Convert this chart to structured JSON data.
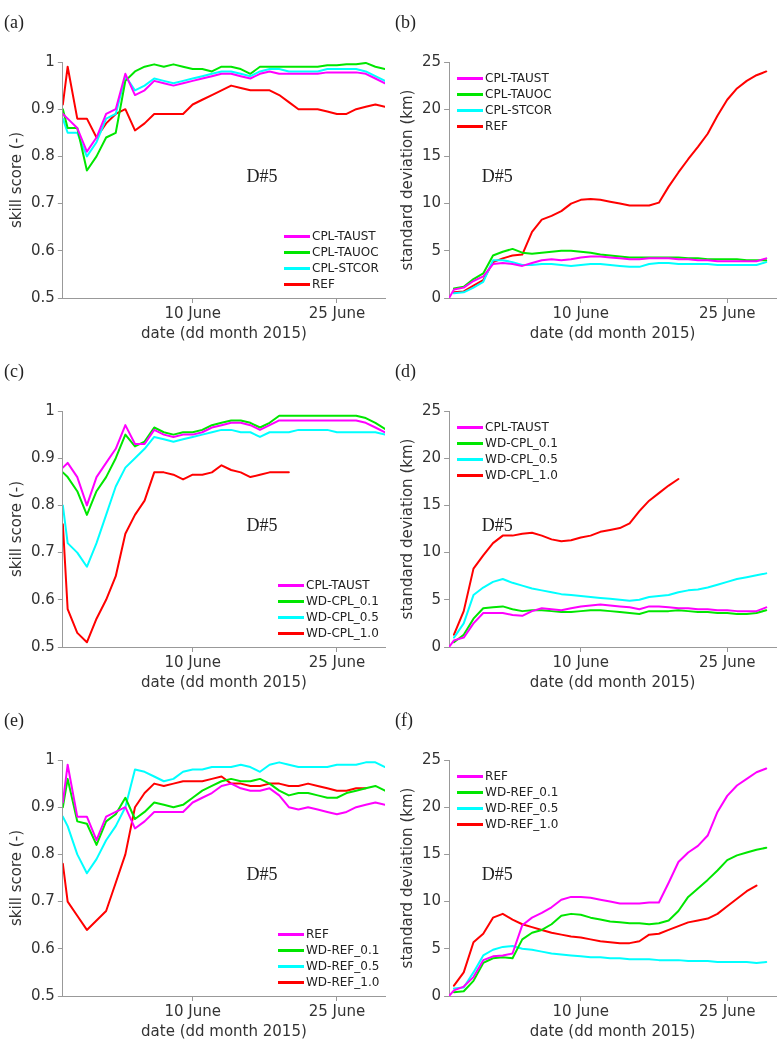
{
  "chart_data": [
    {
      "type": "line",
      "xlabel": "date (dd month 2015)",
      "ylabel": "skill score (-)",
      "annotations": [
        "(a)",
        "D#5"
      ],
      "legend": "bottom right",
      "xlim": [
        "2015-05-27T12:00",
        "2015-06-30"
      ],
      "xticks": [
        {
          "value": "2015-06-10",
          "label": "10 June"
        },
        {
          "value": "2015-06-25",
          "label": "25 June"
        }
      ],
      "ylim": [
        0.5,
        1
      ],
      "yticks": [
        0.5,
        0.6,
        0.7,
        0.8,
        0.9,
        1
      ],
      "x": [
        "2015-05-27T12:00",
        "2015-05-28",
        "2015-05-29",
        "2015-05-30",
        "2015-05-31",
        "2015-06-01",
        "2015-06-02",
        "2015-06-03",
        "2015-06-04",
        "2015-06-05",
        "2015-06-06",
        "2015-06-07",
        "2015-06-08",
        "2015-06-09",
        "2015-06-10",
        "2015-06-11",
        "2015-06-12",
        "2015-06-13",
        "2015-06-14",
        "2015-06-15",
        "2015-06-16",
        "2015-06-17",
        "2015-06-18",
        "2015-06-19",
        "2015-06-20",
        "2015-06-21",
        "2015-06-22",
        "2015-06-23",
        "2015-06-24",
        "2015-06-25",
        "2015-06-26",
        "2015-06-27",
        "2015-06-28",
        "2015-06-29",
        "2015-06-30"
      ],
      "series": [
        {
          "name": "CPL-TAUST",
          "color": "#ff00ff",
          "values": [
            0.89,
            0.88,
            0.86,
            0.81,
            0.84,
            0.89,
            0.9,
            0.975,
            0.93,
            0.94,
            0.96,
            0.955,
            0.95,
            0.955,
            0.96,
            0.965,
            0.97,
            0.975,
            0.975,
            0.97,
            0.965,
            0.975,
            0.98,
            0.975,
            0.975,
            0.975,
            0.975,
            0.975,
            0.978,
            0.978,
            0.978,
            0.978,
            0.975,
            0.965,
            0.955
          ]
        },
        {
          "name": "CPL-TAUOC",
          "color": "#00e600",
          "values": [
            0.9,
            0.86,
            0.86,
            0.77,
            0.8,
            0.84,
            0.85,
            0.96,
            0.98,
            0.99,
            0.995,
            0.99,
            0.995,
            0.99,
            0.985,
            0.985,
            0.98,
            0.99,
            0.99,
            0.985,
            0.975,
            0.99,
            0.99,
            0.99,
            0.99,
            0.99,
            0.99,
            0.99,
            0.993,
            0.993,
            0.995,
            0.995,
            0.998,
            0.99,
            0.985
          ]
        },
        {
          "name": "CPL-STCOR",
          "color": "#00ffff",
          "values": [
            0.88,
            0.85,
            0.85,
            0.8,
            0.83,
            0.88,
            0.89,
            0.97,
            0.94,
            0.95,
            0.965,
            0.96,
            0.955,
            0.96,
            0.965,
            0.97,
            0.975,
            0.98,
            0.98,
            0.975,
            0.97,
            0.98,
            0.985,
            0.985,
            0.98,
            0.98,
            0.98,
            0.98,
            0.985,
            0.985,
            0.985,
            0.985,
            0.98,
            0.97,
            0.96
          ]
        },
        {
          "name": "REF",
          "color": "#ff0000",
          "values": [
            0.91,
            0.99,
            0.88,
            0.88,
            0.84,
            0.87,
            0.89,
            0.9,
            0.855,
            0.87,
            0.89,
            0.89,
            0.89,
            0.89,
            0.91,
            0.92,
            0.93,
            0.94,
            0.95,
            0.945,
            0.94,
            0.94,
            0.94,
            0.93,
            0.915,
            0.9,
            0.9,
            0.9,
            0.895,
            0.89,
            0.89,
            0.9,
            0.905,
            0.91,
            0.905
          ]
        }
      ]
    },
    {
      "type": "line",
      "xlabel": "date (dd month 2015)",
      "ylabel": "standard deviation (km)",
      "annotations": [
        "(b)",
        "D#5"
      ],
      "legend": "top left",
      "xlim": [
        "2015-05-27T12:00",
        "2015-06-30"
      ],
      "xticks": [
        {
          "value": "2015-06-10",
          "label": "10 June"
        },
        {
          "value": "2015-06-25",
          "label": "25 June"
        }
      ],
      "ylim": [
        0,
        25
      ],
      "yticks": [
        0,
        5,
        10,
        15,
        20,
        25
      ],
      "x": [
        "2015-05-27T12:00",
        "2015-05-28",
        "2015-05-29",
        "2015-05-30",
        "2015-05-31",
        "2015-06-01",
        "2015-06-02",
        "2015-06-03",
        "2015-06-04",
        "2015-06-05",
        "2015-06-06",
        "2015-06-07",
        "2015-06-08",
        "2015-06-09",
        "2015-06-10",
        "2015-06-11",
        "2015-06-12",
        "2015-06-13",
        "2015-06-14",
        "2015-06-15",
        "2015-06-16",
        "2015-06-17",
        "2015-06-18",
        "2015-06-19",
        "2015-06-20",
        "2015-06-21",
        "2015-06-22",
        "2015-06-23",
        "2015-06-24",
        "2015-06-25",
        "2015-06-26",
        "2015-06-27",
        "2015-06-28",
        "2015-06-29"
      ],
      "series": [
        {
          "name": "CPL-TAUST",
          "color": "#ff00ff",
          "values": [
            0,
            0.9,
            1.1,
            1.8,
            2.3,
            3.6,
            3.7,
            3.6,
            3.4,
            3.7,
            4,
            4.1,
            4,
            4.1,
            4.3,
            4.4,
            4.4,
            4.3,
            4.2,
            4.1,
            4.1,
            4.2,
            4.2,
            4.2,
            4.1,
            4.1,
            4,
            4,
            3.9,
            3.9,
            3.9,
            3.9,
            3.9,
            4.2
          ]
        },
        {
          "name": "CPL-TAUOC",
          "color": "#00e600",
          "values": [
            null,
            1,
            1.2,
            2,
            2.6,
            4.5,
            4.9,
            5.2,
            4.8,
            4.7,
            4.8,
            4.9,
            5,
            5,
            4.9,
            4.8,
            4.6,
            4.5,
            4.4,
            4.3,
            4.3,
            4.3,
            4.3,
            4.3,
            4.3,
            4.2,
            4.2,
            4.1,
            4.1,
            4.1,
            4.1,
            4,
            4,
            4
          ]
        },
        {
          "name": "CPL-STCOR",
          "color": "#00ffff",
          "values": [
            null,
            0.5,
            0.6,
            1.1,
            1.7,
            4,
            4,
            3.8,
            3.5,
            3.5,
            3.6,
            3.6,
            3.5,
            3.4,
            3.5,
            3.6,
            3.6,
            3.5,
            3.4,
            3.3,
            3.3,
            3.6,
            3.7,
            3.7,
            3.6,
            3.6,
            3.6,
            3.6,
            3.5,
            3.5,
            3.5,
            3.5,
            3.5,
            3.8
          ]
        },
        {
          "name": "REF",
          "color": "#ff0000",
          "values": [
            null,
            0.6,
            0.7,
            1.3,
            1.9,
            3.8,
            4.2,
            4.5,
            4.6,
            7,
            8.3,
            8.7,
            9.2,
            10,
            10.4,
            10.5,
            10.4,
            10.2,
            10,
            9.8,
            9.8,
            9.8,
            10.1,
            11.8,
            13.3,
            14.7,
            16,
            17.4,
            19.3,
            21,
            22.2,
            23,
            23.6,
            24
          ]
        }
      ]
    },
    {
      "type": "line",
      "xlabel": "date (dd month 2015)",
      "ylabel": "skill score (-)",
      "annotations": [
        "(c)",
        "D#5"
      ],
      "legend": "bottom right",
      "xlim": [
        "2015-05-27T12:00",
        "2015-06-30"
      ],
      "xticks": [
        {
          "value": "2015-06-10",
          "label": "10 June"
        },
        {
          "value": "2015-06-25",
          "label": "25 June"
        }
      ],
      "ylim": [
        0.5,
        1
      ],
      "yticks": [
        0.5,
        0.6,
        0.7,
        0.8,
        0.9,
        1
      ],
      "x": [
        "2015-05-27T12:00",
        "2015-05-28",
        "2015-05-29",
        "2015-05-30",
        "2015-05-31",
        "2015-06-01",
        "2015-06-02",
        "2015-06-03",
        "2015-06-04",
        "2015-06-05",
        "2015-06-06",
        "2015-06-07",
        "2015-06-08",
        "2015-06-09",
        "2015-06-10",
        "2015-06-11",
        "2015-06-12",
        "2015-06-13",
        "2015-06-14",
        "2015-06-15",
        "2015-06-16",
        "2015-06-17",
        "2015-06-18",
        "2015-06-19",
        "2015-06-20",
        "2015-06-21",
        "2015-06-22",
        "2015-06-23",
        "2015-06-24",
        "2015-06-25",
        "2015-06-26",
        "2015-06-27",
        "2015-06-28",
        "2015-06-29",
        "2015-06-30"
      ],
      "series": [
        {
          "name": "CPL-TAUST",
          "color": "#ff00ff",
          "values": [
            0.88,
            0.89,
            0.86,
            0.8,
            0.86,
            0.89,
            0.92,
            0.97,
            0.93,
            0.93,
            0.96,
            0.95,
            0.945,
            0.95,
            0.95,
            0.955,
            0.965,
            0.97,
            0.975,
            0.975,
            0.97,
            0.96,
            0.97,
            0.98,
            0.98,
            0.98,
            0.98,
            0.98,
            0.98,
            0.98,
            0.98,
            0.98,
            0.975,
            0.965,
            0.955
          ]
        },
        {
          "name": "WD-CPL_0.1",
          "color": "#00e600",
          "values": [
            0.87,
            0.86,
            0.83,
            0.78,
            0.83,
            0.86,
            0.9,
            0.95,
            0.925,
            0.935,
            0.965,
            0.955,
            0.95,
            0.955,
            0.955,
            0.96,
            0.97,
            0.975,
            0.98,
            0.98,
            0.975,
            0.965,
            0.975,
            0.99,
            0.99,
            0.99,
            0.99,
            0.99,
            0.99,
            0.99,
            0.99,
            0.99,
            0.985,
            0.975,
            0.962
          ]
        },
        {
          "name": "WD-CPL_0.5",
          "color": "#00ffff",
          "values": [
            0.8,
            0.72,
            0.7,
            0.67,
            0.72,
            0.78,
            0.84,
            0.88,
            0.9,
            0.92,
            0.945,
            0.94,
            0.935,
            0.94,
            0.945,
            0.95,
            0.955,
            0.96,
            0.96,
            0.955,
            0.955,
            0.945,
            0.955,
            0.955,
            0.955,
            0.96,
            0.96,
            0.96,
            0.96,
            0.955,
            0.955,
            0.955,
            0.955,
            0.955,
            0.95
          ]
        },
        {
          "name": "WD-CPL_1.0",
          "color": "#ff0000",
          "values": [
            0.76,
            0.58,
            0.53,
            0.51,
            0.56,
            0.6,
            0.65,
            0.74,
            0.78,
            0.81,
            0.87,
            0.87,
            0.865,
            0.855,
            0.865,
            0.865,
            0.87,
            0.885,
            0.875,
            0.87,
            0.86,
            0.865,
            0.87,
            0.87,
            0.87,
            null,
            null,
            null,
            null,
            null,
            null,
            null,
            null,
            null,
            null
          ]
        }
      ]
    },
    {
      "type": "line",
      "xlabel": "date (dd month 2015)",
      "ylabel": "standard deviation (km)",
      "annotations": [
        "(d)",
        "D#5"
      ],
      "legend": "top left",
      "xlim": [
        "2015-05-27T12:00",
        "2015-06-30"
      ],
      "xticks": [
        {
          "value": "2015-06-10",
          "label": "10 June"
        },
        {
          "value": "2015-06-25",
          "label": "25 June"
        }
      ],
      "ylim": [
        0,
        25
      ],
      "yticks": [
        0,
        5,
        10,
        15,
        20,
        25
      ],
      "x": [
        "2015-05-27T12:00",
        "2015-05-28",
        "2015-05-29",
        "2015-05-30",
        "2015-05-31",
        "2015-06-01",
        "2015-06-02",
        "2015-06-03",
        "2015-06-04",
        "2015-06-05",
        "2015-06-06",
        "2015-06-07",
        "2015-06-08",
        "2015-06-09",
        "2015-06-10",
        "2015-06-11",
        "2015-06-12",
        "2015-06-13",
        "2015-06-14",
        "2015-06-15",
        "2015-06-16",
        "2015-06-17",
        "2015-06-18",
        "2015-06-19",
        "2015-06-20",
        "2015-06-21",
        "2015-06-22",
        "2015-06-23",
        "2015-06-24",
        "2015-06-25",
        "2015-06-26",
        "2015-06-27",
        "2015-06-28",
        "2015-06-29"
      ],
      "series": [
        {
          "name": "CPL-TAUST",
          "color": "#ff00ff",
          "values": [
            0,
            0.7,
            1,
            2.5,
            3.6,
            3.6,
            3.6,
            3.4,
            3.3,
            3.8,
            4.1,
            4,
            3.9,
            4.1,
            4.3,
            4.4,
            4.5,
            4.4,
            4.3,
            4.2,
            4,
            4.3,
            4.3,
            4.2,
            4.1,
            4.1,
            4,
            4,
            3.9,
            3.9,
            3.8,
            3.8,
            3.8,
            4.2
          ]
        },
        {
          "name": "WD-CPL_0.1",
          "color": "#00e600",
          "values": [
            null,
            0.5,
            1.3,
            3,
            4.1,
            4.2,
            4.3,
            4,
            3.8,
            3.9,
            3.9,
            3.8,
            3.7,
            3.7,
            3.8,
            3.9,
            3.9,
            3.8,
            3.7,
            3.6,
            3.5,
            3.8,
            3.8,
            3.8,
            3.9,
            3.8,
            3.7,
            3.7,
            3.6,
            3.6,
            3.5,
            3.5,
            3.6,
            3.9
          ]
        },
        {
          "name": "WD-CPL_0.5",
          "color": "#00ffff",
          "values": [
            null,
            1,
            2.5,
            5.5,
            6.3,
            6.9,
            7.2,
            6.8,
            6.5,
            6.2,
            6,
            5.8,
            5.6,
            5.5,
            5.4,
            5.3,
            5.2,
            5.1,
            5,
            4.9,
            5,
            5.3,
            5.4,
            5.5,
            5.8,
            6,
            6.1,
            6.3,
            6.6,
            6.9,
            7.2,
            7.4,
            7.6,
            7.8
          ]
        },
        {
          "name": "WD-CPL_1.0",
          "color": "#ff0000",
          "values": [
            null,
            1.3,
            3.8,
            8.3,
            9.7,
            11,
            11.8,
            11.8,
            12,
            12.1,
            11.8,
            11.4,
            11.2,
            11.3,
            11.6,
            11.8,
            12.2,
            12.4,
            12.6,
            13.1,
            14.4,
            15.5,
            16.3,
            17.1,
            17.8,
            null,
            null,
            null,
            null,
            null,
            null,
            null,
            null,
            null
          ]
        }
      ]
    },
    {
      "type": "line",
      "xlabel": "date (dd month 2015)",
      "ylabel": "skill score (-)",
      "annotations": [
        "(e)",
        "D#5"
      ],
      "legend": "bottom right",
      "xlim": [
        "2015-05-27T12:00",
        "2015-06-30"
      ],
      "xticks": [
        {
          "value": "2015-06-10",
          "label": "10 June"
        },
        {
          "value": "2015-06-25",
          "label": "25 June"
        }
      ],
      "ylim": [
        0.5,
        1
      ],
      "yticks": [
        0.5,
        0.6,
        0.7,
        0.8,
        0.9,
        1
      ],
      "x": [
        "2015-05-27T12:00",
        "2015-05-28",
        "2015-05-29",
        "2015-05-30",
        "2015-05-31",
        "2015-06-01",
        "2015-06-02",
        "2015-06-03",
        "2015-06-04",
        "2015-06-05",
        "2015-06-06",
        "2015-06-07",
        "2015-06-08",
        "2015-06-09",
        "2015-06-10",
        "2015-06-11",
        "2015-06-12",
        "2015-06-13",
        "2015-06-14",
        "2015-06-15",
        "2015-06-16",
        "2015-06-17",
        "2015-06-18",
        "2015-06-19",
        "2015-06-20",
        "2015-06-21",
        "2015-06-22",
        "2015-06-23",
        "2015-06-24",
        "2015-06-25",
        "2015-06-26",
        "2015-06-27",
        "2015-06-28",
        "2015-06-29",
        "2015-06-30"
      ],
      "series": [
        {
          "name": "REF",
          "color": "#ff00ff",
          "values": [
            0.91,
            0.99,
            0.88,
            0.88,
            0.83,
            0.88,
            0.89,
            0.9,
            0.855,
            0.87,
            0.89,
            0.89,
            0.89,
            0.89,
            0.91,
            0.92,
            0.93,
            0.945,
            0.95,
            0.94,
            0.935,
            0.935,
            0.94,
            0.925,
            0.9,
            0.895,
            0.9,
            0.895,
            0.89,
            0.885,
            0.89,
            0.9,
            0.905,
            0.91,
            0.905
          ]
        },
        {
          "name": "WD-REF_0.1",
          "color": "#00e600",
          "values": [
            0.9,
            0.96,
            0.87,
            0.865,
            0.82,
            0.87,
            0.885,
            0.92,
            0.875,
            0.89,
            0.91,
            0.905,
            0.9,
            0.905,
            0.92,
            0.935,
            0.945,
            0.955,
            0.96,
            0.955,
            0.955,
            0.96,
            0.95,
            0.935,
            0.925,
            0.93,
            0.93,
            0.925,
            0.92,
            0.92,
            0.93,
            0.935,
            0.94,
            0.945,
            0.935
          ]
        },
        {
          "name": "WD-REF_0.5",
          "color": "#00ffff",
          "values": [
            0.88,
            0.86,
            0.8,
            0.76,
            0.79,
            0.83,
            0.86,
            0.9,
            0.98,
            0.975,
            0.965,
            0.955,
            0.96,
            0.975,
            0.98,
            0.98,
            0.985,
            0.985,
            0.985,
            0.99,
            0.985,
            0.975,
            0.99,
            0.995,
            0.99,
            0.985,
            0.985,
            0.985,
            0.985,
            0.99,
            0.99,
            0.99,
            0.995,
            0.995,
            0.985
          ]
        },
        {
          "name": "WD-REF_1.0",
          "color": "#ff0000",
          "values": [
            0.78,
            0.7,
            0.67,
            0.64,
            0.66,
            0.68,
            0.74,
            0.8,
            0.9,
            0.93,
            0.95,
            0.945,
            0.95,
            0.955,
            0.955,
            0.955,
            0.96,
            0.965,
            0.95,
            0.95,
            0.945,
            0.945,
            0.95,
            0.95,
            0.945,
            0.945,
            0.95,
            0.945,
            0.94,
            0.935,
            0.935,
            0.94,
            0.94,
            null,
            null
          ]
        }
      ]
    },
    {
      "type": "line",
      "xlabel": "date (dd month 2015)",
      "ylabel": "standard deviation (km)",
      "annotations": [
        "(f)",
        "D#5"
      ],
      "legend": "top left",
      "xlim": [
        "2015-05-27T12:00",
        "2015-06-30"
      ],
      "xticks": [
        {
          "value": "2015-06-10",
          "label": "10 June"
        },
        {
          "value": "2015-06-25",
          "label": "25 June"
        }
      ],
      "ylim": [
        0,
        25
      ],
      "yticks": [
        0,
        5,
        10,
        15,
        20,
        25
      ],
      "x": [
        "2015-05-27T12:00",
        "2015-05-28",
        "2015-05-29",
        "2015-05-30",
        "2015-05-31",
        "2015-06-01",
        "2015-06-02",
        "2015-06-03",
        "2015-06-04",
        "2015-06-05",
        "2015-06-06",
        "2015-06-07",
        "2015-06-08",
        "2015-06-09",
        "2015-06-10",
        "2015-06-11",
        "2015-06-12",
        "2015-06-13",
        "2015-06-14",
        "2015-06-15",
        "2015-06-16",
        "2015-06-17",
        "2015-06-18",
        "2015-06-19",
        "2015-06-20",
        "2015-06-21",
        "2015-06-22",
        "2015-06-23",
        "2015-06-24",
        "2015-06-25",
        "2015-06-26",
        "2015-06-27",
        "2015-06-28",
        "2015-06-29"
      ],
      "series": [
        {
          "name": "REF",
          "color": "#ff00ff",
          "values": [
            0,
            0.6,
            1,
            2,
            3.8,
            4.2,
            4.3,
            4.5,
            7.5,
            8.3,
            8.8,
            9.4,
            10.2,
            10.5,
            10.5,
            10.4,
            10.2,
            10,
            9.8,
            9.8,
            9.8,
            9.9,
            9.9,
            12,
            14.2,
            15.2,
            15.9,
            17,
            19.5,
            21.2,
            22.3,
            23,
            23.7,
            24.1
          ]
        },
        {
          "name": "WD-REF_0.1",
          "color": "#00e600",
          "values": [
            null,
            0.4,
            0.5,
            1.6,
            3.5,
            4,
            4.1,
            4,
            6,
            6.7,
            7,
            7.6,
            8.5,
            8.7,
            8.6,
            8.3,
            8.1,
            7.9,
            7.8,
            7.7,
            7.7,
            7.6,
            7.7,
            8,
            9,
            10.5,
            11.4,
            12.3,
            13.3,
            14.4,
            14.9,
            15.2,
            15.5,
            15.7
          ]
        },
        {
          "name": "WD-REF_0.5",
          "color": "#00ffff",
          "values": [
            null,
            0.8,
            0.9,
            2.5,
            4.3,
            4.9,
            5.2,
            5.3,
            5,
            4.9,
            4.7,
            4.5,
            4.4,
            4.3,
            4.2,
            4.1,
            4.1,
            4,
            4,
            3.9,
            3.9,
            3.9,
            3.8,
            3.8,
            3.8,
            3.7,
            3.7,
            3.7,
            3.6,
            3.6,
            3.6,
            3.6,
            3.5,
            3.6
          ]
        },
        {
          "name": "WD-REF_1.0",
          "color": "#ff0000",
          "values": [
            null,
            1.1,
            2.5,
            5.7,
            6.6,
            8.3,
            8.7,
            8.1,
            7.6,
            7.3,
            7,
            6.7,
            6.5,
            6.3,
            6.2,
            6,
            5.8,
            5.7,
            5.6,
            5.6,
            5.8,
            6.5,
            6.6,
            7,
            7.4,
            7.8,
            8,
            8.2,
            8.7,
            9.5,
            10.3,
            11.1,
            11.7,
            null
          ]
        }
      ]
    }
  ]
}
